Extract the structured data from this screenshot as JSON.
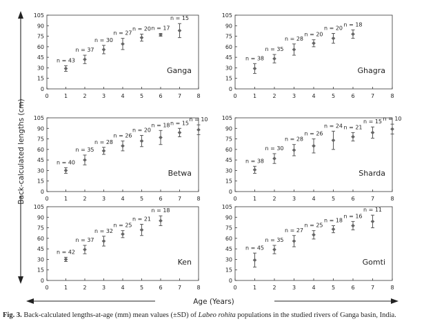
{
  "figure": {
    "ylabel": "Back-calculated lengths (cm)",
    "xlabel": "Age (Years)",
    "caption_fig_no": "Fig. 3.",
    "caption_pre": " Back-calculated lengths-at-age (mm) mean values (±SD) of ",
    "caption_species": "Labeo rohita",
    "caption_post": " populations in the studied rivers of Ganga basin, India."
  },
  "chart_data": [
    {
      "type": "scatter",
      "river": "Ganga",
      "x": [
        1,
        2,
        3,
        4,
        5,
        6,
        7
      ],
      "y": [
        29,
        42,
        56,
        64,
        73,
        77,
        83
      ],
      "sd": [
        4,
        6,
        6,
        8,
        5,
        2,
        10
      ],
      "n_labels": [
        "n = 43",
        "n = 37",
        "n = 30",
        "n = 27",
        "n = 20",
        "n = 17",
        "n = 15"
      ],
      "xlim": [
        0,
        8
      ],
      "ylim": [
        0,
        105
      ],
      "xticks": [
        0,
        1,
        2,
        3,
        4,
        5,
        6,
        7,
        8
      ],
      "yticks": [
        0,
        15,
        30,
        45,
        60,
        75,
        90,
        105
      ]
    },
    {
      "type": "scatter",
      "river": "Ghagra",
      "x": [
        1,
        2,
        3,
        4,
        5,
        6
      ],
      "y": [
        29,
        43,
        56,
        65,
        72,
        78
      ],
      "sd": [
        7,
        6,
        8,
        5,
        7,
        6
      ],
      "n_labels": [
        "n = 38",
        "n = 35",
        "n = 28",
        "n = 20",
        "n = 20",
        "n = 18"
      ],
      "xlim": [
        0,
        8
      ],
      "ylim": [
        0,
        105
      ],
      "xticks": [
        0,
        1,
        2,
        3,
        4,
        5,
        6,
        7,
        8
      ],
      "yticks": [
        0,
        15,
        30,
        45,
        60,
        75,
        90,
        105
      ]
    },
    {
      "type": "scatter",
      "river": "Betwa",
      "x": [
        1,
        2,
        3,
        4,
        5,
        6,
        7,
        8
      ],
      "y": [
        30,
        45,
        58,
        65,
        72,
        77,
        84,
        88
      ],
      "sd": [
        4,
        7,
        5,
        7,
        8,
        10,
        6,
        7
      ],
      "n_labels": [
        "n = 40",
        "n = 35",
        "n = 28",
        "n = 26",
        "n = 20",
        "n = 18",
        "n = 15",
        "n = 10"
      ],
      "xlim": [
        0,
        8
      ],
      "ylim": [
        0,
        105
      ],
      "xticks": [
        0,
        1,
        2,
        3,
        4,
        5,
        6,
        7,
        8
      ],
      "yticks": [
        0,
        15,
        30,
        45,
        60,
        75,
        90,
        105
      ]
    },
    {
      "type": "scatter",
      "river": "Sharda",
      "x": [
        1,
        2,
        3,
        4,
        5,
        6,
        7,
        8
      ],
      "y": [
        31,
        47,
        59,
        65,
        73,
        78,
        84,
        89
      ],
      "sd": [
        5,
        7,
        8,
        10,
        13,
        6,
        8,
        7
      ],
      "n_labels": [
        "n = 38",
        "n = 30",
        "n = 28",
        "n = 26",
        "n = 24",
        "n = 21",
        "n = 15",
        "n = 10"
      ],
      "xlim": [
        0,
        8
      ],
      "ylim": [
        0,
        105
      ],
      "xticks": [
        0,
        1,
        2,
        3,
        4,
        5,
        6,
        7,
        8
      ],
      "yticks": [
        0,
        15,
        30,
        45,
        60,
        75,
        90,
        105
      ]
    },
    {
      "type": "scatter",
      "river": "Ken",
      "x": [
        1,
        2,
        3,
        4,
        5,
        6
      ],
      "y": [
        30,
        44,
        56,
        66,
        72,
        85
      ],
      "sd": [
        3,
        6,
        7,
        5,
        8,
        7
      ],
      "n_labels": [
        "n = 42",
        "n = 37",
        "n = 32",
        "n = 25",
        "n = 21",
        "n = 18"
      ],
      "xlim": [
        0,
        8
      ],
      "ylim": [
        0,
        105
      ],
      "xticks": [
        0,
        1,
        2,
        3,
        4,
        5,
        6,
        7,
        8
      ],
      "yticks": [
        0,
        15,
        30,
        45,
        60,
        75,
        90,
        105
      ]
    },
    {
      "type": "scatter",
      "river": "Gomti",
      "x": [
        1,
        2,
        3,
        4,
        5,
        6,
        7
      ],
      "y": [
        29,
        44,
        56,
        65,
        73,
        78,
        84
      ],
      "sd": [
        10,
        6,
        8,
        6,
        5,
        6,
        9
      ],
      "n_labels": [
        "n = 45",
        "n = 35",
        "n = 27",
        "n = 25",
        "n = 18",
        "n = 16",
        "n = 11"
      ],
      "xlim": [
        0,
        8
      ],
      "ylim": [
        0,
        105
      ],
      "xticks": [
        0,
        1,
        2,
        3,
        4,
        5,
        6,
        7,
        8
      ],
      "yticks": [
        0,
        15,
        30,
        45,
        60,
        75,
        90,
        105
      ]
    }
  ]
}
